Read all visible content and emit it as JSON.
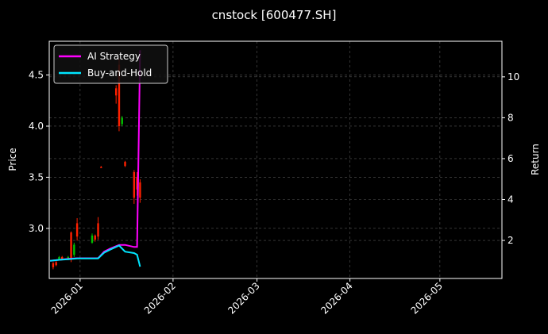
{
  "chart_data": {
    "type": "candlestick",
    "title": "cnstock [600477.SH]",
    "y_label": "Price",
    "y2_label": "Return",
    "x": [
      -9,
      -8,
      -7,
      -6,
      -4,
      -3,
      -2,
      -1,
      4,
      5,
      6,
      7,
      12,
      13,
      14,
      15,
      18,
      19,
      20
    ],
    "open": [
      2.66,
      2.67,
      2.7,
      2.72,
      2.71,
      2.96,
      2.74,
      3.05,
      2.86,
      2.93,
      3.05,
      3.6,
      4.37,
      4.6,
      4.02,
      3.65,
      3.55,
      3.5,
      3.45
    ],
    "high": [
      2.67,
      2.68,
      2.73,
      2.73,
      2.73,
      2.97,
      2.86,
      3.1,
      2.95,
      2.94,
      3.11,
      3.61,
      4.4,
      4.66,
      4.1,
      3.66,
      3.57,
      3.55,
      3.48
    ],
    "low": [
      2.6,
      2.63,
      2.69,
      2.69,
      2.69,
      2.67,
      2.72,
      2.88,
      2.85,
      2.87,
      2.89,
      3.59,
      4.22,
      3.95,
      4.0,
      3.6,
      3.24,
      3.32,
      3.25
    ],
    "close": [
      2.62,
      2.64,
      2.72,
      2.7,
      2.72,
      2.7,
      2.84,
      2.92,
      2.93,
      2.89,
      2.92,
      3.59,
      4.3,
      4.0,
      4.08,
      3.61,
      3.3,
      3.38,
      3.3
    ],
    "up_color": "#00c000",
    "down_color": "#ff2000",
    "series": [
      {
        "name": "AI Strategy",
        "color": "#ff00ff",
        "axis": "y2",
        "x": [
          -10,
          -7,
          -4,
          -1,
          6,
          8,
          10,
          13,
          15,
          18,
          19,
          20
        ],
        "values": [
          1.0,
          1.05,
          1.1,
          1.13,
          1.13,
          1.45,
          1.6,
          1.78,
          1.78,
          1.68,
          1.68,
          11.3
        ]
      },
      {
        "name": "Buy-and-Hold",
        "color": "#00e5ff",
        "axis": "y2",
        "x": [
          -10,
          -7,
          -4,
          -1,
          6,
          8,
          10,
          13,
          15,
          18,
          19,
          20
        ],
        "values": [
          1.0,
          1.05,
          1.08,
          1.12,
          1.12,
          1.4,
          1.55,
          1.75,
          1.45,
          1.38,
          1.3,
          0.72
        ]
      }
    ],
    "xlim": [
      -10.3,
      140.7
    ],
    "xticks": [
      {
        "value": 0,
        "label": "2026-01"
      },
      {
        "value": 31,
        "label": "2026-02"
      },
      {
        "value": 59,
        "label": "2026-03"
      },
      {
        "value": 90,
        "label": "2026-04"
      },
      {
        "value": 120,
        "label": "2026-05"
      }
    ],
    "ylim": [
      2.51,
      4.83
    ],
    "yticks": [
      {
        "value": 3,
        "label": "3.0"
      },
      3.5,
      {
        "value": 4,
        "label": "4.0"
      },
      4.5
    ],
    "y2lim": [
      0.14,
      11.74
    ],
    "y2ticks": [
      2,
      4,
      6,
      8,
      10
    ],
    "grid": true,
    "legend": "upper left"
  }
}
